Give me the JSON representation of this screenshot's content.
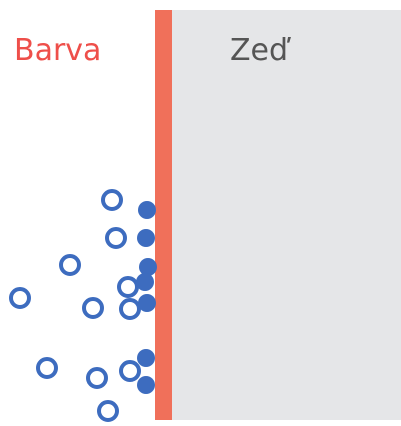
{
  "labels": {
    "paint": "Barva",
    "wall": "Zeď"
  }
}
